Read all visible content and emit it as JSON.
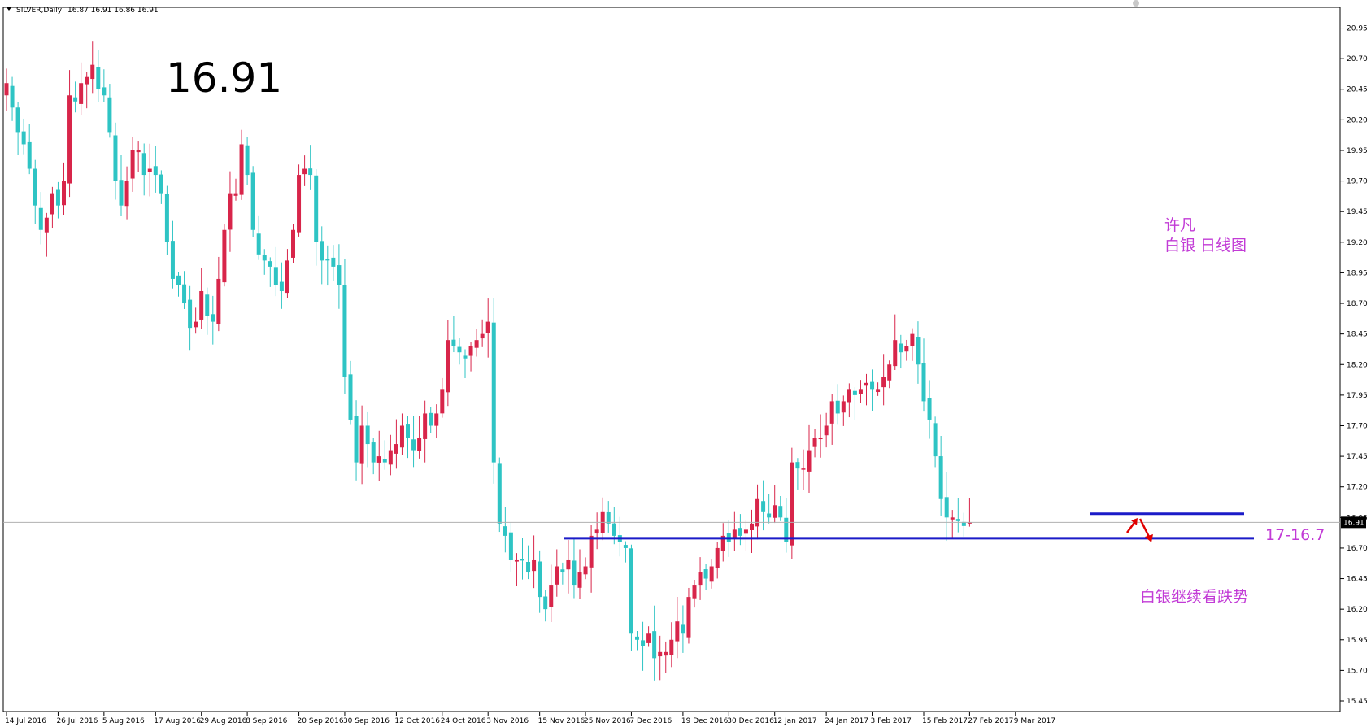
{
  "header": {
    "symbol_label": "SILVER,Daily",
    "ohlc_label": "16.87 16.91 16.86 16.91",
    "menu_icon": "triangle-down-icon"
  },
  "big_price": "16.91",
  "annotations": {
    "author": "许凡",
    "chart_name": "白银 日线图",
    "range_label": "17-16.7",
    "forecast": "白银继续看跌势"
  },
  "colors": {
    "bull": "#d8254a",
    "bear": "#2ec4c4",
    "level_line": "#1b1bc8",
    "annotation": "#c23bd6",
    "arrow": "#e00000",
    "price_box": "#000000"
  },
  "chart_data": {
    "type": "candlestick",
    "symbol": "SILVER",
    "timeframe": "Daily",
    "ylim": [
      15.45,
      21.0
    ],
    "y_ticks": [
      "20.95",
      "20.70",
      "20.45",
      "20.20",
      "19.95",
      "19.70",
      "19.45",
      "19.20",
      "18.95",
      "18.70",
      "18.45",
      "18.20",
      "17.95",
      "17.70",
      "17.45",
      "17.20",
      "16.95",
      "16.70",
      "16.45",
      "16.20",
      "15.95",
      "15.70",
      "15.45"
    ],
    "current_price": "16.91",
    "x_ticks": [
      {
        "label": "14 Jul 2016",
        "index": 0
      },
      {
        "label": "26 Jul 2016",
        "index": 9
      },
      {
        "label": "5 Aug 2016",
        "index": 17
      },
      {
        "label": "17 Aug 2016",
        "index": 26
      },
      {
        "label": "29 Aug 2016",
        "index": 34
      },
      {
        "label": "8 Sep 2016",
        "index": 42
      },
      {
        "label": "20 Sep 2016",
        "index": 51
      },
      {
        "label": "30 Sep 2016",
        "index": 59
      },
      {
        "label": "12 Oct 2016",
        "index": 68
      },
      {
        "label": "24 Oct 2016",
        "index": 76
      },
      {
        "label": "3 Nov 2016",
        "index": 84
      },
      {
        "label": "15 Nov 2016",
        "index": 93
      },
      {
        "label": "25 Nov 2016",
        "index": 101
      },
      {
        "label": "7 Dec 2016",
        "index": 109
      },
      {
        "label": "19 Dec 2016",
        "index": 118
      },
      {
        "label": "30 Dec 2016",
        "index": 126
      },
      {
        "label": "12 Jan 2017",
        "index": 134
      },
      {
        "label": "24 Jan 2017",
        "index": 143
      },
      {
        "label": "3 Feb 2017",
        "index": 151
      },
      {
        "label": "15 Feb 2017",
        "index": 160
      },
      {
        "label": "27 Feb 2017",
        "index": 168
      },
      {
        "label": "9 Mar 2017",
        "index": 176
      }
    ],
    "closes": [
      20.5,
      20.3,
      20.1,
      20.0,
      19.8,
      19.5,
      19.3,
      19.4,
      19.6,
      19.5,
      19.7,
      20.4,
      20.35,
      20.5,
      20.55,
      20.65,
      20.45,
      20.4,
      20.1,
      19.7,
      19.5,
      19.7,
      19.95,
      19.95,
      19.75,
      19.8,
      19.75,
      19.6,
      19.2,
      18.9,
      18.85,
      18.7,
      18.5,
      18.55,
      18.8,
      18.6,
      18.55,
      18.9,
      19.3,
      19.6,
      19.6,
      20.0,
      19.75,
      19.3,
      19.1,
      19.05,
      19.0,
      18.85,
      18.8,
      19.05,
      19.3,
      19.75,
      19.8,
      19.75,
      19.2,
      19.05,
      19.05,
      19.0,
      18.85,
      18.1,
      17.75,
      17.4,
      17.7,
      17.55,
      17.4,
      17.45,
      17.4,
      17.5,
      17.55,
      17.7,
      17.6,
      17.5,
      17.6,
      17.8,
      17.7,
      17.8,
      18.0,
      18.4,
      18.35,
      18.3,
      18.25,
      18.35,
      18.4,
      18.45,
      18.55,
      17.4,
      16.9,
      16.8,
      16.6,
      16.6,
      16.6,
      16.5,
      16.6,
      16.3,
      16.2,
      16.4,
      16.55,
      16.5,
      16.6,
      16.4,
      16.5,
      16.55,
      16.8,
      16.85,
      17.0,
      16.9,
      16.8,
      16.75,
      16.7,
      16.0,
      15.95,
      15.9,
      16.0,
      15.8,
      15.85,
      15.85,
      15.95,
      16.1,
      16.0,
      16.3,
      16.4,
      16.5,
      16.45,
      16.55,
      16.7,
      16.8,
      16.75,
      16.85,
      16.8,
      16.85,
      16.9,
      17.1,
      17.0,
      16.95,
      17.05,
      16.95,
      16.75,
      17.4,
      17.35,
      17.35,
      17.5,
      17.6,
      17.6,
      17.7,
      17.9,
      17.8,
      17.9,
      18.0,
      17.95,
      18.0,
      18.05,
      18.0,
      18.0,
      18.1,
      18.2,
      18.4,
      18.3,
      18.35,
      18.45,
      18.2,
      17.9,
      17.75,
      17.45,
      17.1,
      16.95,
      16.95,
      16.92,
      16.88,
      16.91
    ]
  }
}
